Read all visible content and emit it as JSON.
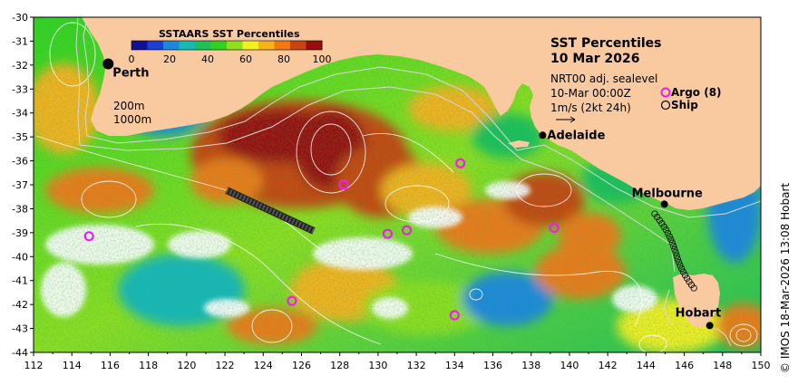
{
  "map": {
    "title": "SST Percentiles",
    "date": "10 Mar 2026",
    "product_line1": "NRT00 adj. sealevel",
    "product_line2": "10-Mar 00:00Z",
    "product_line3": "1m/s (2kt 24h)",
    "credit": "© IMOS 18-Mar-2026 13:08 Hobart",
    "colorbar": {
      "title": "SSTAARS SST Percentiles",
      "ticks": [
        "0",
        "20",
        "40",
        "60",
        "80",
        "100"
      ],
      "colors": [
        "#121296",
        "#1b3fd4",
        "#1c88dd",
        "#19b8b8",
        "#1ec05a",
        "#2fd31f",
        "#8ee01e",
        "#f2ef22",
        "#f6b31c",
        "#ef7a14",
        "#c84410",
        "#9a0d0d"
      ]
    },
    "depth_labels": [
      "200m",
      "1000m"
    ],
    "legend": {
      "argo": "Argo (8)",
      "ship": "Ship"
    },
    "cities": [
      {
        "name": "Perth",
        "lon": 115.9,
        "lat": -31.95
      },
      {
        "name": "Adelaide",
        "lon": 138.6,
        "lat": -34.93
      },
      {
        "name": "Melbourne",
        "lon": 144.96,
        "lat": -37.81
      },
      {
        "name": "Hobart",
        "lon": 147.33,
        "lat": -42.88
      }
    ],
    "argo_floats": [
      {
        "lon": 114.9,
        "lat": -39.15
      },
      {
        "lon": 128.2,
        "lat": -37.0
      },
      {
        "lon": 130.5,
        "lat": -39.05
      },
      {
        "lon": 131.5,
        "lat": -38.9
      },
      {
        "lon": 134.3,
        "lat": -36.1
      },
      {
        "lon": 139.2,
        "lat": -38.8
      },
      {
        "lon": 125.5,
        "lat": -41.85
      },
      {
        "lon": 134.0,
        "lat": -42.45
      }
    ],
    "x_ticks": [
      "112",
      "114",
      "116",
      "118",
      "120",
      "122",
      "124",
      "126",
      "128",
      "130",
      "132",
      "134",
      "136",
      "138",
      "140",
      "142",
      "144",
      "146",
      "148",
      "150"
    ],
    "y_ticks": [
      "-30",
      "-31",
      "-32",
      "-33",
      "-34",
      "-35",
      "-36",
      "-37",
      "-38",
      "-39",
      "-40",
      "-41",
      "-42",
      "-43",
      "-44"
    ],
    "land_color": "#f9caa0",
    "argo_color": "#ee1fee"
  }
}
